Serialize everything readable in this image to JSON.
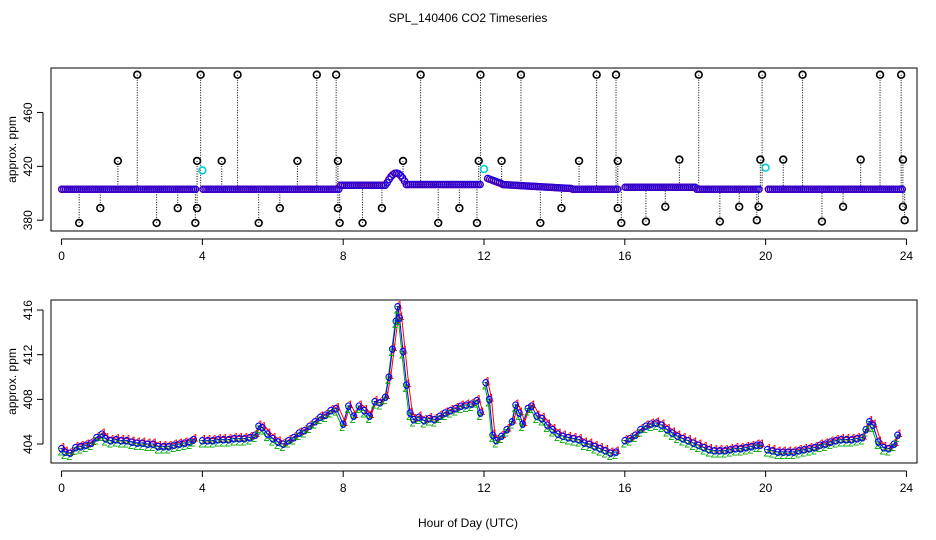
{
  "chart_data": {
    "title": "SPL_140406  CO2 Timeseries",
    "xlabel": "Hour of Day (UTC)",
    "panels": [
      {
        "id": "top",
        "type": "scatter",
        "ylabel": "approx. ppm",
        "xlim": [
          -0.3,
          24.3
        ],
        "ylim": [
          372,
          493
        ],
        "xticks": [
          0,
          4,
          8,
          12,
          16,
          20,
          24
        ],
        "yticks": [
          380,
          420,
          460
        ],
        "ytick_labels": [
          "380",
          "420",
          "460"
        ],
        "series_colors": [
          "#000000",
          "#ff0000",
          "#00aa00",
          "#0000ff",
          "#00e5ee"
        ],
        "series": [
          {
            "name": "1",
            "color": "#ff0000"
          },
          {
            "name": "2",
            "color": "#00aa00"
          },
          {
            "name": "3",
            "color": "#0000ff"
          }
        ],
        "outlier_marker_color": "#000000",
        "highlight_marker_color": "#00ced1",
        "outliers_high": [
          {
            "x": 2.15,
            "y": 488
          },
          {
            "x": 3.95,
            "y": 488
          },
          {
            "x": 5.0,
            "y": 488
          },
          {
            "x": 7.25,
            "y": 488
          },
          {
            "x": 7.8,
            "y": 488
          },
          {
            "x": 10.2,
            "y": 488
          },
          {
            "x": 11.9,
            "y": 488
          },
          {
            "x": 13.05,
            "y": 488
          },
          {
            "x": 15.2,
            "y": 488
          },
          {
            "x": 15.75,
            "y": 488
          },
          {
            "x": 18.1,
            "y": 488
          },
          {
            "x": 19.9,
            "y": 488
          },
          {
            "x": 21.05,
            "y": 488
          },
          {
            "x": 23.25,
            "y": 488
          },
          {
            "x": 23.85,
            "y": 488
          }
        ],
        "outliers_mid": [
          {
            "x": 1.6,
            "y": 424
          },
          {
            "x": 3.85,
            "y": 424
          },
          {
            "x": 4.55,
            "y": 424
          },
          {
            "x": 6.7,
            "y": 424
          },
          {
            "x": 7.85,
            "y": 424
          },
          {
            "x": 9.7,
            "y": 424
          },
          {
            "x": 11.85,
            "y": 424
          },
          {
            "x": 12.5,
            "y": 424
          },
          {
            "x": 14.7,
            "y": 424
          },
          {
            "x": 15.8,
            "y": 424
          },
          {
            "x": 17.55,
            "y": 425
          },
          {
            "x": 19.85,
            "y": 425
          },
          {
            "x": 20.5,
            "y": 425
          },
          {
            "x": 22.7,
            "y": 425
          },
          {
            "x": 23.9,
            "y": 425
          }
        ],
        "outliers_low": [
          {
            "x": 0.5,
            "y": 378
          },
          {
            "x": 1.1,
            "y": 389
          },
          {
            "x": 2.7,
            "y": 378
          },
          {
            "x": 3.3,
            "y": 389
          },
          {
            "x": 3.8,
            "y": 378
          },
          {
            "x": 3.85,
            "y": 389
          },
          {
            "x": 5.6,
            "y": 378
          },
          {
            "x": 6.2,
            "y": 389
          },
          {
            "x": 7.9,
            "y": 378
          },
          {
            "x": 7.85,
            "y": 389
          },
          {
            "x": 8.55,
            "y": 378
          },
          {
            "x": 9.1,
            "y": 389
          },
          {
            "x": 10.7,
            "y": 378
          },
          {
            "x": 11.3,
            "y": 389
          },
          {
            "x": 11.8,
            "y": 378
          },
          {
            "x": 13.6,
            "y": 378
          },
          {
            "x": 14.2,
            "y": 389
          },
          {
            "x": 15.8,
            "y": 389
          },
          {
            "x": 15.9,
            "y": 378
          },
          {
            "x": 16.6,
            "y": 379
          },
          {
            "x": 17.15,
            "y": 390
          },
          {
            "x": 18.7,
            "y": 379
          },
          {
            "x": 19.25,
            "y": 390
          },
          {
            "x": 19.75,
            "y": 380
          },
          {
            "x": 19.8,
            "y": 390
          },
          {
            "x": 21.6,
            "y": 379
          },
          {
            "x": 22.2,
            "y": 390
          },
          {
            "x": 23.9,
            "y": 390
          },
          {
            "x": 23.95,
            "y": 380
          }
        ],
        "highlights": [
          {
            "x": 4.0,
            "y": 417
          },
          {
            "x": 12.0,
            "y": 418
          },
          {
            "x": 20.0,
            "y": 419
          }
        ]
      },
      {
        "id": "bottom",
        "type": "line",
        "ylabel": "approx. ppm",
        "xlim": [
          -0.3,
          24.3
        ],
        "ylim": [
          402.3,
          416.9
        ],
        "xticks": [
          0,
          4,
          8,
          12,
          16,
          20,
          24
        ],
        "yticks": [
          404,
          408,
          412,
          416
        ],
        "ytick_labels": [
          "404",
          "408",
          "412",
          "416"
        ],
        "point_labels": [
          "1",
          "2",
          "3"
        ],
        "series": [
          {
            "name": "1",
            "color": "#ff0000"
          },
          {
            "name": "2",
            "color": "#00aa00"
          },
          {
            "name": "3",
            "color": "#0000ff"
          }
        ],
        "segments": [
          {
            "x": [
              0.0,
              0.1,
              0.25,
              0.4,
              0.55,
              0.7,
              0.85,
              1.0,
              1.15,
              1.25,
              1.4,
              1.55,
              1.7,
              1.85,
              2.0,
              2.15,
              2.3,
              2.45,
              2.6,
              2.75,
              2.9,
              3.05,
              3.2,
              3.35,
              3.5,
              3.65,
              3.75
            ],
            "y": [
              403.6,
              403.3,
              403.2,
              403.7,
              403.8,
              403.9,
              404.1,
              404.6,
              404.9,
              404.5,
              404.3,
              404.4,
              404.3,
              404.3,
              404.2,
              404.1,
              404.1,
              404.0,
              404.0,
              403.8,
              403.8,
              403.8,
              403.9,
              404.0,
              404.1,
              404.2,
              404.4
            ]
          },
          {
            "x": [
              4.0,
              4.15,
              4.3,
              4.45,
              4.6,
              4.75,
              4.9,
              5.05,
              5.2,
              5.35,
              5.5,
              5.6,
              5.7,
              5.85,
              6.0,
              6.15,
              6.3,
              6.45,
              6.6,
              6.75,
              6.9,
              7.05,
              7.2,
              7.35,
              7.5,
              7.65,
              7.8,
              8.0,
              8.15,
              8.3,
              8.45,
              8.6,
              8.75,
              8.9,
              9.05,
              9.2,
              9.3,
              9.4,
              9.5,
              9.55,
              9.6,
              9.7,
              9.8,
              9.9,
              10.0,
              10.15,
              10.3,
              10.45,
              10.6,
              10.75,
              10.9,
              11.05,
              11.2,
              11.35,
              11.5,
              11.65,
              11.8,
              11.9
            ],
            "y": [
              404.3,
              404.3,
              404.3,
              404.4,
              404.4,
              404.4,
              404.5,
              404.5,
              404.5,
              404.6,
              404.8,
              405.6,
              405.5,
              404.9,
              404.5,
              404.2,
              404.0,
              404.3,
              404.6,
              405.0,
              405.2,
              405.6,
              406.0,
              406.4,
              406.6,
              407.0,
              407.2,
              405.8,
              407.4,
              406.5,
              407.4,
              407.0,
              406.5,
              407.8,
              407.7,
              408.2,
              410.0,
              412.5,
              415.0,
              416.3,
              415.3,
              412.3,
              409.3,
              406.8,
              406.2,
              406.4,
              406.1,
              406.3,
              406.2,
              406.5,
              406.8,
              407.0,
              407.2,
              407.4,
              407.5,
              407.6,
              407.9,
              406.8
            ]
          },
          {
            "x": [
              12.05,
              12.15,
              12.25,
              12.35,
              12.5,
              12.65,
              12.8,
              12.9,
              13.0,
              13.1,
              13.25,
              13.35,
              13.5,
              13.65,
              13.8,
              13.95,
              14.1,
              14.25,
              14.4,
              14.55,
              14.7,
              14.85,
              15.0,
              15.15,
              15.3,
              15.45,
              15.6,
              15.75
            ],
            "y": [
              409.5,
              408.0,
              404.8,
              404.3,
              404.7,
              405.3,
              406.0,
              407.5,
              406.8,
              405.8,
              407.2,
              407.4,
              406.5,
              406.3,
              405.7,
              405.3,
              404.9,
              404.7,
              404.6,
              404.5,
              404.4,
              404.1,
              404.0,
              403.8,
              403.6,
              403.4,
              403.2,
              403.3
            ]
          },
          {
            "x": [
              16.0,
              16.15,
              16.3,
              16.45,
              16.6,
              16.75,
              16.9,
              17.05,
              17.2,
              17.35,
              17.5,
              17.65,
              17.8,
              17.95,
              18.1,
              18.25,
              18.4,
              18.55,
              18.7,
              18.85,
              19.0,
              19.15,
              19.3,
              19.45,
              19.6,
              19.75,
              19.85
            ],
            "y": [
              404.3,
              404.5,
              404.8,
              405.3,
              405.6,
              405.8,
              405.9,
              405.7,
              405.3,
              405.0,
              404.7,
              404.5,
              404.3,
              404.1,
              403.9,
              403.7,
              403.5,
              403.4,
              403.4,
              403.4,
              403.5,
              403.6,
              403.6,
              403.7,
              403.8,
              403.9,
              403.9
            ]
          },
          {
            "x": [
              20.05,
              20.2,
              20.35,
              20.5,
              20.65,
              20.8,
              20.95,
              21.1,
              21.25,
              21.4,
              21.55,
              21.7,
              21.85,
              22.0,
              22.15,
              22.3,
              22.45,
              22.6,
              22.75,
              22.85,
              22.95,
              23.05,
              23.2,
              23.35,
              23.5,
              23.65,
              23.75
            ],
            "y": [
              403.5,
              403.4,
              403.3,
              403.3,
              403.3,
              403.3,
              403.4,
              403.5,
              403.6,
              403.7,
              403.9,
              404.0,
              404.2,
              404.3,
              404.4,
              404.4,
              404.4,
              404.5,
              404.6,
              405.3,
              406.0,
              405.7,
              404.2,
              403.7,
              403.6,
              404.0,
              404.8
            ]
          }
        ]
      }
    ]
  }
}
